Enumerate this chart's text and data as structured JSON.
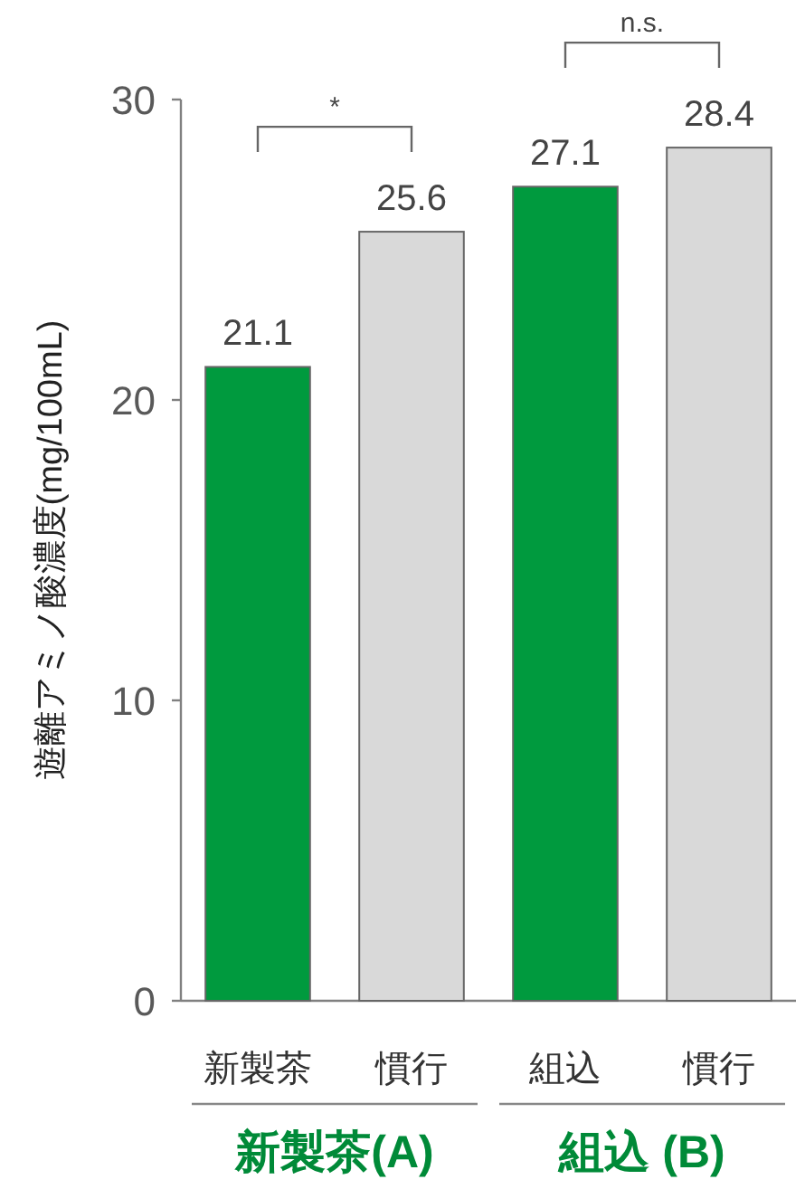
{
  "chart_data": {
    "type": "bar",
    "ylabel": "遊離アミノ酸濃度(mg/100mL)",
    "categories": [
      "新製茶",
      "慣行",
      "組込",
      "慣行"
    ],
    "values": [
      21.1,
      25.6,
      27.1,
      28.4
    ],
    "colors": [
      "#009a3e",
      "#d9d9d9",
      "#009a3e",
      "#d9d9d9"
    ],
    "ylim": [
      0,
      30
    ],
    "yticks": [
      0,
      10,
      20,
      30
    ],
    "data_labels": true,
    "grid": false,
    "annotations": [
      "*",
      "n.s.",
      "新製茶(A)",
      "組込 (B)"
    ]
  }
}
